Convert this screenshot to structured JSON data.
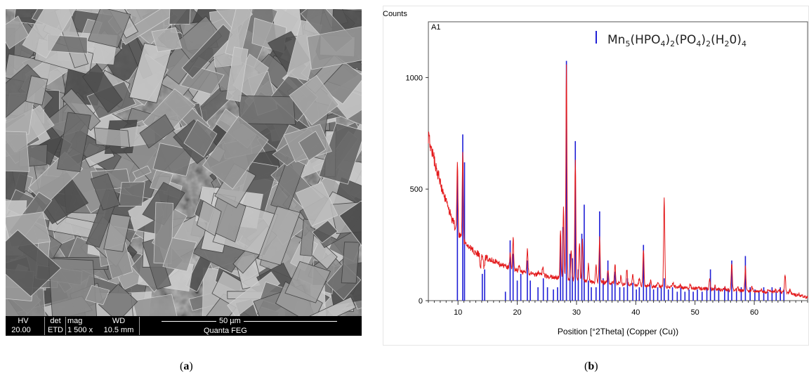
{
  "panel_a": {
    "caption_open": "(",
    "caption_letter": "a",
    "caption_close": ")",
    "databar": {
      "hv_label": "HV",
      "hv_value": "20.00 kV",
      "det_label": "det",
      "det_value": "ETD",
      "mag_label": "mag",
      "mag_value": "1 500 x",
      "wd_label": "WD",
      "wd_value": "10.5 mm",
      "scale_label": "50 µm",
      "instrument": "Quanta FEG"
    }
  },
  "panel_b": {
    "caption_open": "(",
    "caption_letter": "b",
    "caption_close": ")"
  },
  "chart_data": {
    "type": "line",
    "ylabel": "Counts",
    "xlabel": "Position [°2Theta] (Copper (Cu))",
    "panel_label": "A1",
    "legend": {
      "label_html": "Mn<sub>5</sub>(HPO<sub>4</sub>)<sub>2</sub>(PO<sub>4</sub>)<sub>2</sub>(H<sub>2</sub>0)<sub>4</sub>",
      "position": "top-right",
      "marker_color": "#1f1fd6"
    },
    "xlim": [
      5,
      69
    ],
    "ylim": [
      0,
      1250
    ],
    "x_ticks": [
      10,
      20,
      30,
      40,
      50,
      60
    ],
    "x_ticks_text": [
      "10",
      "20",
      "30",
      "40",
      "50",
      "60"
    ],
    "y_ticks": [
      0,
      500,
      1000
    ],
    "y_ticks_text": [
      "0",
      "500",
      "1000"
    ],
    "measured_color": "#e31a1c",
    "reference_color": "#1f1fd6",
    "measured_peaks": [
      [
        9.9,
        610
      ],
      [
        10.8,
        660
      ],
      [
        13.8,
        140
      ],
      [
        14.4,
        145
      ],
      [
        18.8,
        210
      ],
      [
        19.3,
        280
      ],
      [
        20.3,
        160
      ],
      [
        21.7,
        230
      ],
      [
        23.5,
        130
      ],
      [
        24.3,
        150
      ],
      [
        25.6,
        110
      ],
      [
        27.3,
        310
      ],
      [
        27.8,
        420
      ],
      [
        28.3,
        1065
      ],
      [
        29.1,
        230
      ],
      [
        29.8,
        630
      ],
      [
        30.5,
        260
      ],
      [
        31.0,
        270
      ],
      [
        32.0,
        160
      ],
      [
        33.3,
        160
      ],
      [
        33.9,
        280
      ],
      [
        35.3,
        140
      ],
      [
        36.5,
        170
      ],
      [
        37.5,
        110
      ],
      [
        38.5,
        140
      ],
      [
        39.5,
        120
      ],
      [
        40.6,
        100
      ],
      [
        41.3,
        230
      ],
      [
        42.5,
        90
      ],
      [
        43.8,
        80
      ],
      [
        44.8,
        470
      ],
      [
        46.3,
        80
      ],
      [
        47.5,
        70
      ],
      [
        49.2,
        70
      ],
      [
        50.3,
        60
      ],
      [
        52.5,
        100
      ],
      [
        53.4,
        70
      ],
      [
        55.0,
        60
      ],
      [
        56.2,
        170
      ],
      [
        57.2,
        60
      ],
      [
        58.5,
        150
      ],
      [
        59.6,
        60
      ],
      [
        61.2,
        50
      ],
      [
        62.4,
        50
      ],
      [
        63.6,
        50
      ],
      [
        64.2,
        50
      ],
      [
        65.2,
        120
      ],
      [
        66.0,
        50
      ],
      [
        67.5,
        30
      ]
    ],
    "reference_lines": [
      [
        9.9,
        560
      ],
      [
        10.8,
        745
      ],
      [
        11.1,
        620
      ],
      [
        14.1,
        120
      ],
      [
        14.5,
        140
      ],
      [
        18.0,
        40
      ],
      [
        18.8,
        270
      ],
      [
        19.3,
        210
      ],
      [
        20.0,
        90
      ],
      [
        20.6,
        120
      ],
      [
        21.7,
        180
      ],
      [
        22.2,
        90
      ],
      [
        23.5,
        60
      ],
      [
        24.4,
        100
      ],
      [
        25.1,
        60
      ],
      [
        26.1,
        50
      ],
      [
        26.8,
        60
      ],
      [
        27.3,
        280
      ],
      [
        27.7,
        330
      ],
      [
        28.3,
        1075
      ],
      [
        28.9,
        210
      ],
      [
        29.3,
        190
      ],
      [
        29.8,
        715
      ],
      [
        30.3,
        140
      ],
      [
        30.9,
        300
      ],
      [
        31.3,
        430
      ],
      [
        32.0,
        90
      ],
      [
        32.5,
        60
      ],
      [
        33.3,
        60
      ],
      [
        33.9,
        400
      ],
      [
        34.5,
        100
      ],
      [
        35.3,
        180
      ],
      [
        36.0,
        80
      ],
      [
        36.5,
        130
      ],
      [
        37.3,
        60
      ],
      [
        38.0,
        60
      ],
      [
        38.6,
        100
      ],
      [
        39.5,
        80
      ],
      [
        40.1,
        50
      ],
      [
        40.6,
        60
      ],
      [
        41.3,
        250
      ],
      [
        41.8,
        60
      ],
      [
        42.4,
        80
      ],
      [
        43.0,
        50
      ],
      [
        43.7,
        60
      ],
      [
        44.3,
        60
      ],
      [
        44.8,
        100
      ],
      [
        45.5,
        50
      ],
      [
        46.2,
        60
      ],
      [
        47.0,
        40
      ],
      [
        47.6,
        60
      ],
      [
        48.3,
        40
      ],
      [
        49.0,
        50
      ],
      [
        49.7,
        40
      ],
      [
        50.4,
        50
      ],
      [
        51.2,
        40
      ],
      [
        52.0,
        60
      ],
      [
        52.6,
        140
      ],
      [
        53.3,
        60
      ],
      [
        54.0,
        50
      ],
      [
        55.0,
        60
      ],
      [
        55.6,
        50
      ],
      [
        56.2,
        180
      ],
      [
        57.0,
        50
      ],
      [
        57.8,
        60
      ],
      [
        58.5,
        200
      ],
      [
        59.3,
        60
      ],
      [
        60.1,
        50
      ],
      [
        60.8,
        40
      ],
      [
        61.6,
        60
      ],
      [
        62.3,
        40
      ],
      [
        63.0,
        60
      ],
      [
        63.7,
        40
      ],
      [
        64.4,
        60
      ],
      [
        65.0,
        50
      ]
    ],
    "background_points": [
      [
        5,
        740
      ],
      [
        6,
        630
      ],
      [
        7,
        530
      ],
      [
        8,
        440
      ],
      [
        9,
        365
      ],
      [
        10,
        300
      ],
      [
        11,
        260
      ],
      [
        12,
        235
      ],
      [
        13,
        215
      ],
      [
        14,
        200
      ],
      [
        15,
        190
      ],
      [
        17,
        165
      ],
      [
        20,
        135
      ],
      [
        23,
        118
      ],
      [
        26,
        105
      ],
      [
        30,
        92
      ],
      [
        35,
        80
      ],
      [
        40,
        70
      ],
      [
        45,
        62
      ],
      [
        50,
        55
      ],
      [
        55,
        48
      ],
      [
        60,
        42
      ],
      [
        65,
        38
      ],
      [
        69,
        15
      ]
    ]
  }
}
